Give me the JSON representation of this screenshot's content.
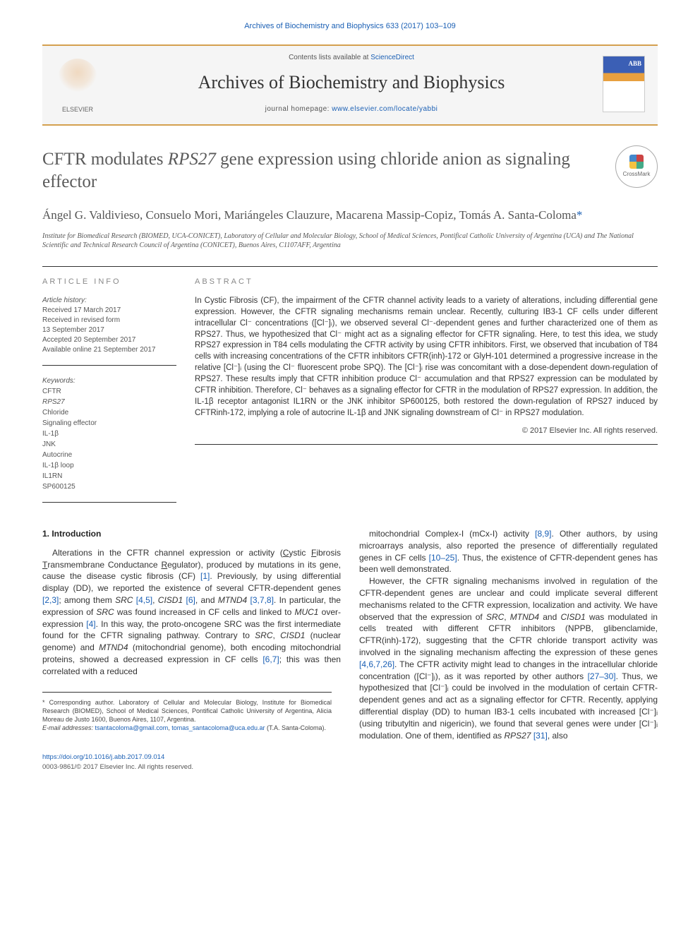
{
  "topbar": "Archives of Biochemistry and Biophysics 633 (2017) 103–109",
  "header": {
    "contents_prefix": "Contents lists available at ",
    "contents_link": "ScienceDirect",
    "journal_name": "Archives of Biochemistry and Biophysics",
    "homepage_prefix": "journal homepage: ",
    "homepage_link": "www.elsevier.com/locate/yabbi",
    "publisher": "ELSEVIER",
    "cover_label": "ABB"
  },
  "crossmark": "CrossMark",
  "title_parts": {
    "pre": "CFTR modulates ",
    "ital": "RPS27",
    "post": " gene expression using chloride anion as signaling effector"
  },
  "authors": "Ángel G. Valdivieso, Consuelo Mori, Mariángeles Clauzure, Macarena Massip-Copiz, Tomás A. Santa-Coloma",
  "corr_mark": "*",
  "affiliation": "Institute for Biomedical Research (BIOMED, UCA-CONICET), Laboratory of Cellular and Molecular Biology, School of Medical Sciences, Pontifical Catholic University of Argentina (UCA) and The National Scientific and Technical Research Council of Argentina (CONICET), Buenos Aires, C1107AFF, Argentina",
  "article_info": {
    "heading": "ARTICLE INFO",
    "history_label": "Article history:",
    "history_lines": [
      "Received 17 March 2017",
      "Received in revised form",
      "13 September 2017",
      "Accepted 20 September 2017",
      "Available online 21 September 2017"
    ],
    "keywords_label": "Keywords:",
    "keywords": [
      "CFTR",
      "RPS27",
      "Chloride",
      "Signaling effector",
      "IL-1β",
      "JNK",
      "Autocrine",
      "IL-1β loop",
      "IL1RN",
      "SP600125"
    ]
  },
  "abstract": {
    "heading": "ABSTRACT",
    "text": "In Cystic Fibrosis (CF), the impairment of the CFTR channel activity leads to a variety of alterations, including differential gene expression. However, the CFTR signaling mechanisms remain unclear. Recently, culturing IB3-1 CF cells under different intracellular Cl⁻ concentrations ([Cl⁻]ᵢ), we observed several Cl⁻-dependent genes and further characterized one of them as RPS27. Thus, we hypothesized that Cl⁻ might act as a signaling effector for CFTR signaling. Here, to test this idea, we study RPS27 expression in T84 cells modulating the CFTR activity by using CFTR inhibitors. First, we observed that incubation of T84 cells with increasing concentrations of the CFTR inhibitors CFTR(inh)-172 or GlyH-101 determined a progressive increase in the relative [Cl⁻]ᵢ (using the Cl⁻ fluorescent probe SPQ). The [Cl⁻]ᵢ rise was concomitant with a dose-dependent down-regulation of RPS27. These results imply that CFTR inhibition produce Cl⁻ accumulation and that RPS27 expression can be modulated by CFTR inhibition. Therefore, Cl⁻ behaves as a signaling effector for CFTR in the modulation of RPS27 expression. In addition, the IL-1β receptor antagonist IL1RN or the JNK inhibitor SP600125, both restored the down-regulation of RPS27 induced by CFTRinh-172, implying a role of autocrine IL-1β and JNK signaling downstream of Cl⁻ in RPS27 modulation.",
    "copyright": "© 2017 Elsevier Inc. All rights reserved."
  },
  "intro": {
    "heading": "1. Introduction",
    "left_html": "Alterations in the CFTR channel expression or activity (<span class='underline'>C</span>ystic <span class='underline'>F</span>ibrosis <span class='underline'>T</span>ransmembrane Conductance <span class='underline'>R</span>egulator), produced by mutations in its gene, cause the disease cystic fibrosis (CF) <a class='ref'>[1]</a>. Previously, by using differential display (DD), we reported the existence of several CFTR-dependent genes <a class='ref'>[2,3]</a>; among them <em>SRC</em> <a class='ref'>[4,5]</a>, <em>CISD1</em> <a class='ref'>[6]</a>, and <em>MTND4</em> <a class='ref'>[3,7,8]</a>. In particular, the expression of <em>SRC</em> was found increased in CF cells and linked to <em>MUC1</em> over-expression <a class='ref'>[4]</a>. In this way, the proto-oncogene SRC was the first intermediate found for the CFTR signaling pathway. Contrary to <em>SRC</em>, <em>CISD1</em> (nuclear genome) and <em>MTND4</em> (mitochondrial genome), both encoding mitochondrial proteins, showed a decreased expression in CF cells <a class='ref'>[6,7]</a>; this was then correlated with a reduced",
    "right_p1_html": "mitochondrial Complex-I (mCx-I) activity <a class='ref'>[8,9]</a>. Other authors, by using microarrays analysis, also reported the presence of differentially regulated genes in CF cells <a class='ref'>[10–25]</a>. Thus, the existence of CFTR-dependent genes has been well demonstrated.",
    "right_p2_html": "However, the CFTR signaling mechanisms involved in regulation of the CFTR-dependent genes are unclear and could implicate several different mechanisms related to the CFTR expression, localization and activity. We have observed that the expression of <em>SRC</em>, <em>MTND4</em> and <em>CISD1</em> was modulated in cells treated with different CFTR inhibitors (NPPB, glibenclamide, CFTR(inh)-172), suggesting that the CFTR chloride transport activity was involved in the signaling mechanism affecting the expression of these genes <a class='ref'>[4,6,7,26]</a>. The CFTR activity might lead to changes in the intracellular chloride concentration ([Cl⁻]ᵢ), as it was reported by other authors <a class='ref'>[27–30]</a>. Thus, we hypothesized that [Cl⁻]ᵢ could be involved in the modulation of certain CFTR-dependent genes and act as a signaling effector for CFTR. Recently, applying differential display (DD) to human IB3-1 cells incubated with increased [Cl⁻]ᵢ (using tributyltin and nigericin), we found that several genes were under [Cl⁻]ᵢ modulation. One of them, identified as <em>RPS27</em> <a class='ref'>[31]</a>, also"
  },
  "footnote": {
    "corr_text": "* Corresponding author. Laboratory of Cellular and Molecular Biology, Institute for Biomedical Research (BIOMED), School of Medical Sciences, Pontifical Catholic University of Argentina, Alicia Moreau de Justo 1600, Buenos Aires, 1107, Argentina.",
    "email_label": "E-mail addresses:",
    "email1": "tsantacoloma@gmail.com",
    "email2": "tomas_santacoloma@uca.edu.ar",
    "email_owner": "(T.A. Santa-Coloma)."
  },
  "bottom": {
    "doi": "https://doi.org/10.1016/j.abb.2017.09.014",
    "issn_line": "0003-9861/© 2017 Elsevier Inc. All rights reserved."
  },
  "colors": {
    "link": "#1a5fb4",
    "accent": "#d4a04f",
    "text": "#333333",
    "muted": "#666666"
  },
  "typography": {
    "title_fontsize_pt": 19,
    "authors_fontsize_pt": 13,
    "body_fontsize_pt": 9,
    "abstract_fontsize_pt": 8.5
  }
}
